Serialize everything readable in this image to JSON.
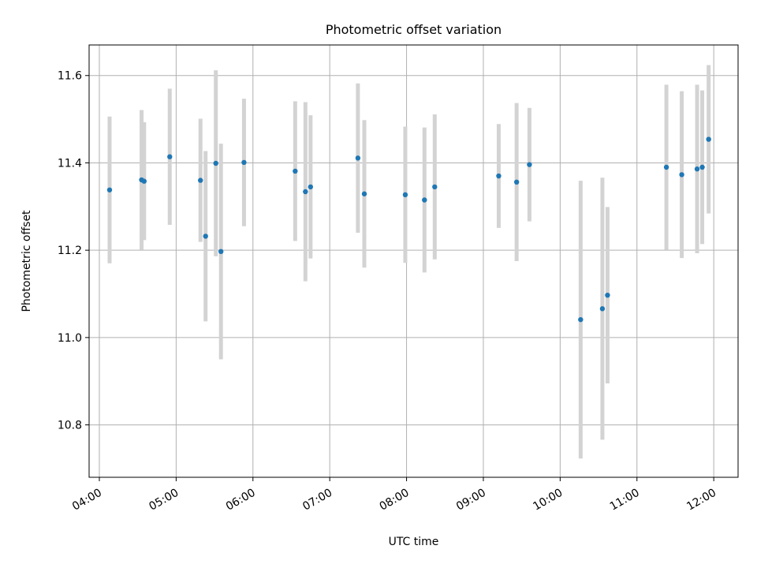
{
  "chart_data": {
    "type": "scatter",
    "title": "Photometric offset variation",
    "xlabel": "UTC time",
    "ylabel": "Photometric offset",
    "x_ticks": [
      "04:00",
      "05:00",
      "06:00",
      "07:00",
      "08:00",
      "09:00",
      "10:00",
      "11:00",
      "12:00"
    ],
    "y_ticks": [
      "10.8",
      "11.0",
      "11.2",
      "11.4",
      "11.6"
    ],
    "xlim": [
      "03:52",
      "12:19"
    ],
    "ylim": [
      10.68,
      11.67
    ],
    "grid": true,
    "series": [
      {
        "marker_color": "#1f77b4",
        "errorbar_color": "#d3d3d3",
        "points": [
          {
            "x": "04:08",
            "y": 11.338,
            "err": 0.168
          },
          {
            "x": "04:33",
            "y": 11.361,
            "err": 0.16
          },
          {
            "x": "04:35",
            "y": 11.358,
            "err": 0.135
          },
          {
            "x": "04:55",
            "y": 11.414,
            "err": 0.156
          },
          {
            "x": "05:19",
            "y": 11.36,
            "err": 0.141
          },
          {
            "x": "05:23",
            "y": 11.232,
            "err": 0.195
          },
          {
            "x": "05:31",
            "y": 11.399,
            "err": 0.213
          },
          {
            "x": "05:35",
            "y": 11.197,
            "err": 0.247
          },
          {
            "x": "05:53",
            "y": 11.401,
            "err": 0.146
          },
          {
            "x": "06:33",
            "y": 11.381,
            "err": 0.16
          },
          {
            "x": "06:41",
            "y": 11.334,
            "err": 0.205
          },
          {
            "x": "06:45",
            "y": 11.345,
            "err": 0.164
          },
          {
            "x": "07:22",
            "y": 11.411,
            "err": 0.171
          },
          {
            "x": "07:27",
            "y": 11.329,
            "err": 0.169
          },
          {
            "x": "07:59",
            "y": 11.327,
            "err": 0.156
          },
          {
            "x": "08:14",
            "y": 11.315,
            "err": 0.166
          },
          {
            "x": "08:22",
            "y": 11.345,
            "err": 0.166
          },
          {
            "x": "09:12",
            "y": 11.37,
            "err": 0.119
          },
          {
            "x": "09:26",
            "y": 11.356,
            "err": 0.181
          },
          {
            "x": "09:36",
            "y": 11.396,
            "err": 0.13
          },
          {
            "x": "10:16",
            "y": 11.041,
            "err": 0.318
          },
          {
            "x": "10:33",
            "y": 11.066,
            "err": 0.3
          },
          {
            "x": "10:37",
            "y": 11.097,
            "err": 0.202
          },
          {
            "x": "11:23",
            "y": 11.39,
            "err": 0.189
          },
          {
            "x": "11:35",
            "y": 11.373,
            "err": 0.191
          },
          {
            "x": "11:47",
            "y": 11.386,
            "err": 0.193
          },
          {
            "x": "11:51",
            "y": 11.39,
            "err": 0.176
          },
          {
            "x": "11:56",
            "y": 11.454,
            "err": 0.17
          }
        ]
      }
    ]
  }
}
